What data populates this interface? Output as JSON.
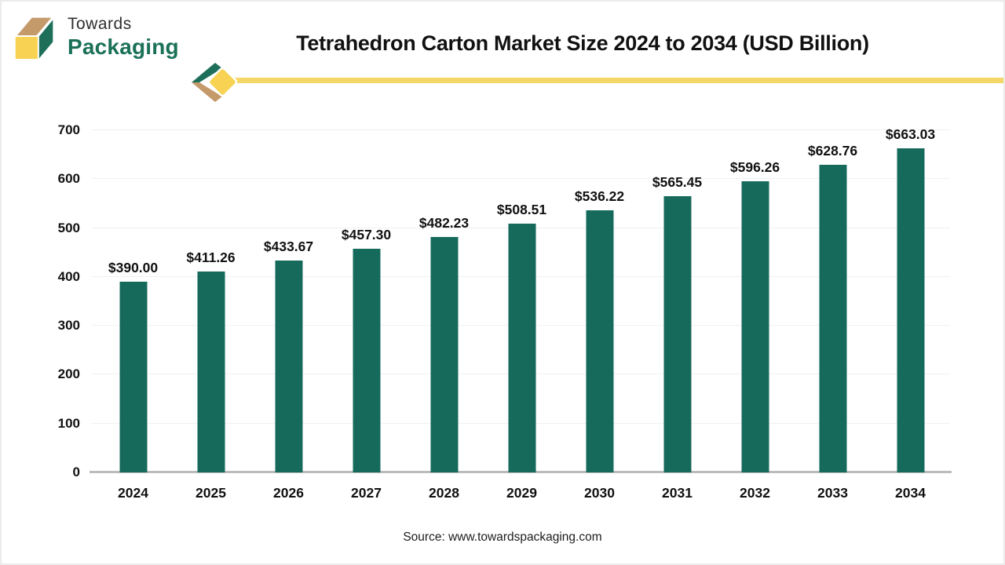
{
  "header": {
    "logo_line1": "Towards",
    "logo_line2": "Packaging",
    "title": "Tetrahedron Carton Market Size 2024 to 2034 (USD Billion)"
  },
  "chart_data": {
    "type": "bar",
    "title": "Tetrahedron Carton Market Size 2024 to 2034 (USD Billion)",
    "categories": [
      "2024",
      "2025",
      "2026",
      "2027",
      "2028",
      "2029",
      "2030",
      "2031",
      "2032",
      "2033",
      "2034"
    ],
    "values": [
      390.0,
      411.26,
      433.67,
      457.3,
      482.23,
      508.51,
      536.22,
      565.45,
      596.26,
      628.76,
      663.03
    ],
    "data_labels": [
      "$390.00",
      "$411.26",
      "$433.67",
      "$457.30",
      "$482.23",
      "$508.51",
      "$536.22",
      "$565.45",
      "$596.26",
      "$628.76",
      "$663.03"
    ],
    "xlabel": "",
    "ylabel": "",
    "ylim": [
      0,
      700
    ],
    "yticks": [
      0,
      100,
      200,
      300,
      400,
      500,
      600,
      700
    ],
    "grid": true,
    "legend": false,
    "bar_color": "#156a5c"
  },
  "footer": {
    "source": "Source: www.towardspackaging.com"
  },
  "colors": {
    "bar_green": "#156a5c",
    "logo_green": "#1b7158",
    "logo_tan": "#c59a6b",
    "logo_yellow": "#f8d253",
    "accent_yellow": "#f5d768",
    "gridline": "#f0f0f0",
    "axis_gray": "#bbbbbb"
  }
}
